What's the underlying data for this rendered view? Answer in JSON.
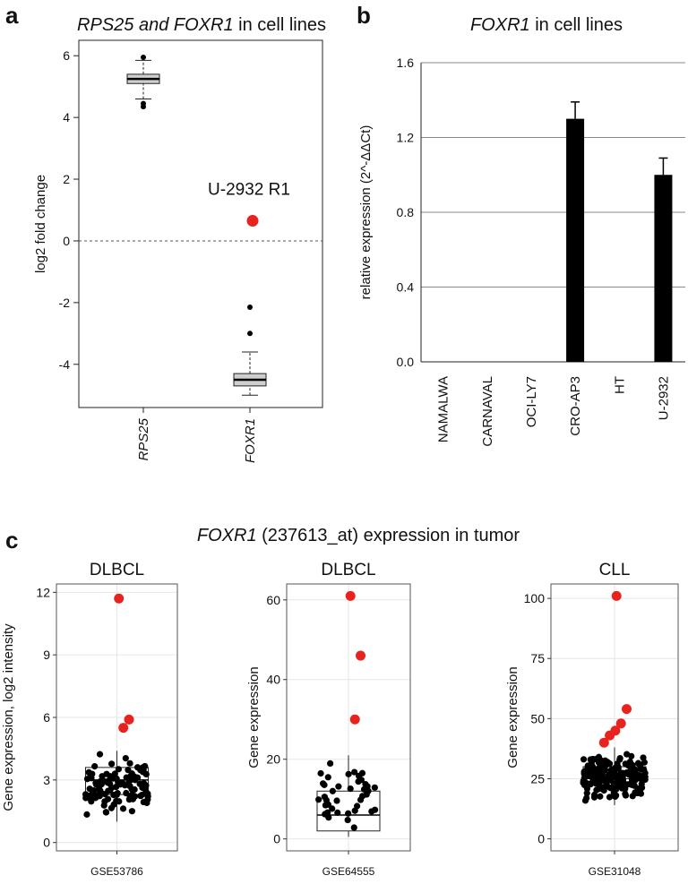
{
  "panels": {
    "a": {
      "letter": "a",
      "title_gene1": "RPS25",
      "title_and": " and ",
      "title_gene2": "FOXR1",
      "title_suffix": " in cell lines",
      "ylabel": "log2 fold change",
      "annotation": "U-2932 R1"
    },
    "b": {
      "letter": "b",
      "title_gene": "FOXR1",
      "title_suffix": " in cell lines",
      "ylabel": "relative expression (2^-ΔΔCt)"
    },
    "c": {
      "letter": "c",
      "title_gene": "FOXR1",
      "title_suffix": " (237613_at) expression in tumor"
    }
  },
  "chart_data": [
    {
      "id": "a",
      "type": "box",
      "title": "RPS25 and FOXR1 in cell lines",
      "ylabel": "log2 fold change",
      "ylim": [
        -5.4,
        6.5
      ],
      "yticks": [
        -4,
        -2,
        0,
        2,
        4,
        6
      ],
      "reference_line": 0,
      "categories": [
        "RPS25",
        "FOXR1"
      ],
      "boxes": [
        {
          "name": "RPS25",
          "whisker_low": 4.6,
          "q1": 5.1,
          "median": 5.25,
          "q3": 5.4,
          "whisker_high": 5.85,
          "outliers": [
            5.95,
            4.45,
            4.35
          ]
        },
        {
          "name": "FOXR1",
          "whisker_low": -5.0,
          "q1": -4.7,
          "median": -4.5,
          "q3": -4.3,
          "whisker_high": -3.6,
          "outliers": [
            -2.15,
            -3.0
          ]
        }
      ],
      "highlight": {
        "label": "U-2932 R1",
        "category": "FOXR1",
        "value": 0.65,
        "color": "#e8231f"
      },
      "grid": false
    },
    {
      "id": "b",
      "type": "bar",
      "title": "FOXR1 in cell lines",
      "ylabel": "relative expression (2^-ΔΔCt)",
      "ylim": [
        0,
        1.6
      ],
      "yticks": [
        "0.0",
        "0.4",
        "0.8",
        "1.2",
        "1.6"
      ],
      "categories": [
        "NAMALWA",
        "CARNAVAL",
        "OCI-LY7",
        "CRO-AP3",
        "HT",
        "U-2932"
      ],
      "values": [
        0,
        0,
        0,
        1.3,
        0,
        1.0
      ],
      "errors": [
        0,
        0,
        0,
        0.09,
        0,
        0.09
      ],
      "grid": true,
      "bar_color": "#000000"
    },
    {
      "id": "c1",
      "type": "box_scatter",
      "title": "DLBCL",
      "xlabel": "GSE53786",
      "ylabel": "Gene expression, log2 intensity",
      "ylim": [
        -0.4,
        12.4
      ],
      "yticks": [
        0,
        3,
        6,
        9,
        12
      ],
      "box": {
        "whisker_low": 1.0,
        "q1": 2.3,
        "median": 3.0,
        "q3": 3.6,
        "whisker_high": 4.4
      },
      "points_range": [
        1.0,
        4.6
      ],
      "point_count": 110,
      "highlight_points": [
        11.7,
        5.9,
        5.5
      ],
      "highlight_color": "#e8231f"
    },
    {
      "id": "c2",
      "type": "box_scatter",
      "title": "DLBCL",
      "xlabel": "GSE64555",
      "ylabel": "Gene expression",
      "ylim": [
        -3,
        64
      ],
      "yticks": [
        0,
        20,
        40,
        60
      ],
      "box": {
        "whisker_low": 0.5,
        "q1": 2,
        "median": 6,
        "q3": 12,
        "whisker_high": 21
      },
      "points_range": [
        0.5,
        22
      ],
      "point_count": 40,
      "highlight_points": [
        61,
        46,
        30
      ],
      "highlight_color": "#e8231f"
    },
    {
      "id": "c3",
      "type": "box_scatter",
      "title": "CLL",
      "xlabel": "GSE31048",
      "ylabel": "Gene expression",
      "ylim": [
        -5,
        106
      ],
      "yticks": [
        0,
        25,
        50,
        75,
        100
      ],
      "box": {
        "whisker_low": 14,
        "q1": 25,
        "median": 27,
        "q3": 30,
        "whisker_high": 38
      },
      "points_range": [
        14,
        38
      ],
      "point_count": 180,
      "highlight_points": [
        101,
        54,
        48,
        45,
        43,
        40
      ],
      "highlight_color": "#e8231f"
    }
  ]
}
